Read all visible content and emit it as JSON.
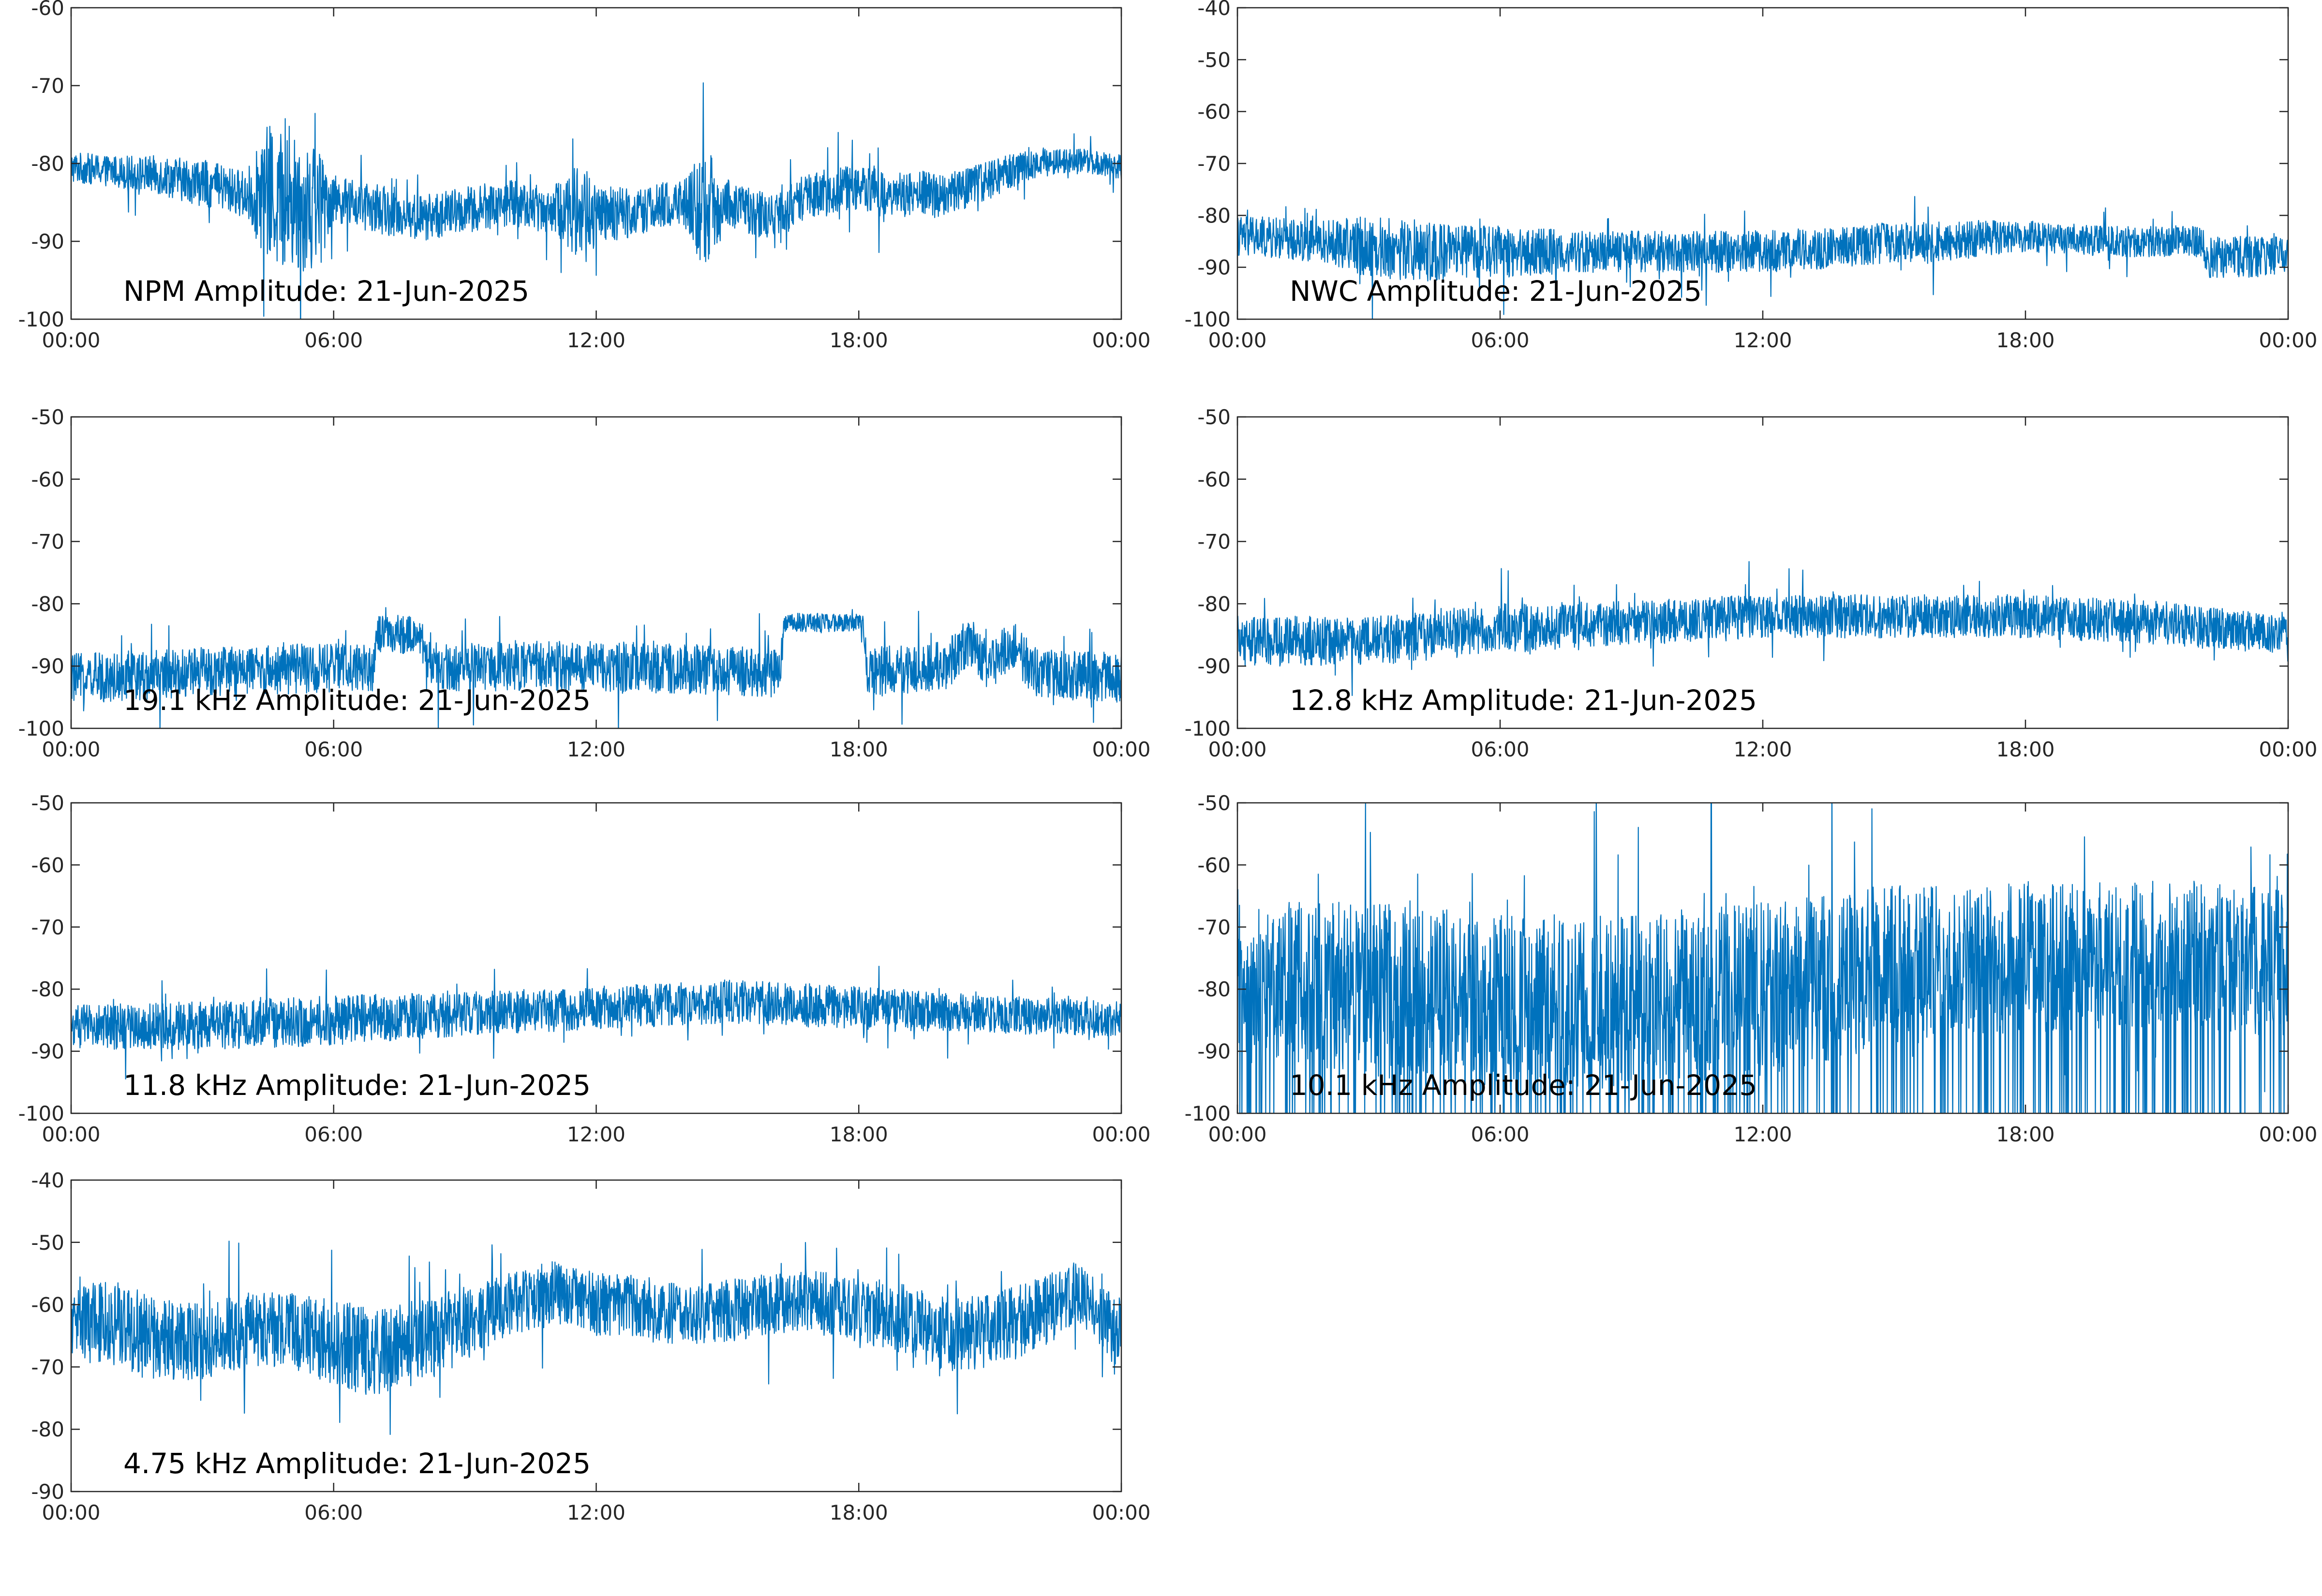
{
  "figure": {
    "line_color": "#0072BD",
    "axis_color": "#262626",
    "background": "#ffffff"
  },
  "chart_data": [
    {
      "type": "line",
      "title": "NPM Amplitude: 21-Jun-2025",
      "xticks": [
        "00:00",
        "06:00",
        "12:00",
        "18:00",
        "00:00"
      ],
      "xlim_hours": [
        0,
        24
      ],
      "ylim": [
        -100,
        -60
      ],
      "yticks": [
        -60,
        -70,
        -80,
        -90,
        -100
      ],
      "grid": false,
      "series": [
        {
          "color": "#0072BD",
          "x_hours": [
            0,
            1,
            2,
            3,
            4,
            4.5,
            5,
            5.5,
            6,
            7,
            8,
            9,
            10,
            11,
            11.7,
            12,
            13,
            14,
            14.5,
            15,
            16,
            17,
            18,
            19,
            20,
            21,
            22,
            23,
            24
          ],
          "center": [
            -80.5,
            -81,
            -81.5,
            -82.5,
            -84,
            -84,
            -85,
            -85,
            -84.5,
            -86,
            -87,
            -86,
            -85,
            -86,
            -86,
            -87,
            -86,
            -85,
            -86,
            -85,
            -87,
            -84,
            -83,
            -84,
            -84,
            -82,
            -80,
            -79.5,
            -80.5
          ],
          "band": [
            2,
            2,
            2.5,
            3,
            3,
            9,
            9,
            9,
            3,
            3,
            3,
            3,
            3,
            3,
            7,
            4,
            3,
            3,
            8,
            3,
            3,
            3,
            3,
            3,
            3,
            2.5,
            2,
            1.5,
            1.5
          ]
        }
      ]
    },
    {
      "type": "line",
      "title": "NWC Amplitude: 21-Jun-2025",
      "xticks": [
        "00:00",
        "06:00",
        "12:00",
        "18:00",
        "00:00"
      ],
      "xlim_hours": [
        0,
        24
      ],
      "ylim": [
        -100,
        -40
      ],
      "yticks": [
        -40,
        -50,
        -60,
        -70,
        -80,
        -90,
        -100
      ],
      "grid": false,
      "series": [
        {
          "color": "#0072BD",
          "x_hours": [
            0,
            2,
            3,
            4,
            5,
            6,
            8,
            10,
            12,
            14,
            15,
            16,
            18,
            20,
            22,
            22.2,
            24
          ],
          "center": [
            -84,
            -85,
            -86,
            -87,
            -87,
            -87,
            -87,
            -87,
            -87,
            -86,
            -85,
            -85,
            -84,
            -85,
            -85,
            -88,
            -88
          ],
          "band": [
            4,
            4,
            6,
            6,
            5,
            5,
            4,
            4,
            4,
            4,
            4,
            4,
            3,
            3,
            3,
            4,
            4
          ]
        }
      ]
    },
    {
      "type": "line",
      "title": "19.1 kHz Amplitude: 21-Jun-2025",
      "xticks": [
        "00:00",
        "06:00",
        "12:00",
        "18:00",
        "00:00"
      ],
      "xlim_hours": [
        0,
        24
      ],
      "ylim": [
        -100,
        -50
      ],
      "yticks": [
        -50,
        -60,
        -70,
        -80,
        -90,
        -100
      ],
      "grid": false,
      "series": [
        {
          "color": "#0072BD",
          "x_hours": [
            0,
            3,
            6.9,
            7,
            8,
            8.1,
            12,
            16.2,
            16.3,
            18.1,
            18.2,
            20,
            20.5,
            21,
            21.5,
            22,
            24
          ],
          "center": [
            -92,
            -91,
            -90,
            -85,
            -85,
            -90,
            -90,
            -91,
            -83,
            -83,
            -91,
            -90,
            -86,
            -90,
            -86,
            -91,
            -92
          ],
          "band": [
            4,
            4,
            4,
            3,
            3,
            4,
            4,
            4,
            1.5,
            1.5,
            4,
            4,
            4,
            4,
            4,
            4,
            4
          ]
        }
      ]
    },
    {
      "type": "line",
      "title": "12.8 kHz Amplitude: 21-Jun-2025",
      "xticks": [
        "00:00",
        "06:00",
        "12:00",
        "18:00",
        "00:00"
      ],
      "xlim_hours": [
        0,
        24
      ],
      "ylim": [
        -100,
        -50
      ],
      "yticks": [
        -50,
        -60,
        -70,
        -80,
        -90,
        -100
      ],
      "grid": false,
      "series": [
        {
          "color": "#0072BD",
          "x_hours": [
            0,
            3,
            6,
            9,
            12,
            15,
            18,
            21,
            24
          ],
          "center": [
            -86,
            -86,
            -84,
            -83,
            -82,
            -82,
            -82,
            -83,
            -85
          ],
          "band": [
            4,
            4,
            4,
            3.5,
            3.5,
            3.5,
            3.5,
            3.5,
            3
          ]
        }
      ]
    },
    {
      "type": "line",
      "title": "11.8 kHz Amplitude: 21-Jun-2025",
      "xticks": [
        "00:00",
        "06:00",
        "12:00",
        "18:00",
        "00:00"
      ],
      "xlim_hours": [
        0,
        24
      ],
      "ylim": [
        -100,
        -50
      ],
      "yticks": [
        -50,
        -60,
        -70,
        -80,
        -90,
        -100
      ],
      "grid": false,
      "series": [
        {
          "color": "#0072BD",
          "x_hours": [
            0,
            3,
            6,
            9,
            12,
            15,
            18,
            21,
            24
          ],
          "center": [
            -86,
            -86,
            -85,
            -84,
            -83,
            -82,
            -83,
            -84,
            -85
          ],
          "band": [
            3.5,
            4,
            4,
            3.5,
            3.5,
            3.5,
            3.5,
            3,
            3
          ]
        }
      ]
    },
    {
      "type": "line",
      "title": "10.1 kHz Amplitude: 21-Jun-2025",
      "xticks": [
        "00:00",
        "06:00",
        "12:00",
        "18:00",
        "00:00"
      ],
      "xlim_hours": [
        0,
        24
      ],
      "ylim": [
        -100,
        -50
      ],
      "yticks": [
        -50,
        -60,
        -70,
        -80,
        -90,
        -100
      ],
      "grid": false,
      "series": [
        {
          "color": "#0072BD",
          "x_hours": [
            0,
            3,
            6,
            9,
            12,
            15,
            18,
            21,
            24
          ],
          "center": [
            -78,
            -80,
            -82,
            -82,
            -80,
            -76,
            -75,
            -74,
            -76
          ],
          "band": [
            12,
            14,
            14,
            14,
            14,
            13,
            12,
            12,
            12
          ]
        }
      ]
    },
    {
      "type": "line",
      "title": "4.75 kHz Amplitude: 21-Jun-2025",
      "xticks": [
        "00:00",
        "06:00",
        "12:00",
        "18:00",
        "00:00"
      ],
      "xlim_hours": [
        0,
        24
      ],
      "ylim": [
        -90,
        -40
      ],
      "yticks": [
        -40,
        -50,
        -60,
        -70,
        -80,
        -90
      ],
      "grid": false,
      "series": [
        {
          "color": "#0072BD",
          "x_hours": [
            0,
            1,
            2,
            3,
            4,
            5,
            6,
            7,
            8,
            9,
            10,
            11,
            12,
            13,
            14,
            15,
            16,
            17,
            18,
            19,
            20,
            21,
            22,
            23,
            24
          ],
          "center": [
            -63,
            -63,
            -66,
            -66,
            -64,
            -64,
            -66,
            -68,
            -66,
            -63,
            -60,
            -58,
            -60,
            -60,
            -62,
            -61,
            -60,
            -59,
            -61,
            -62,
            -65,
            -64,
            -62,
            -58,
            -65
          ],
          "band": [
            6,
            7,
            7,
            6,
            6,
            6,
            7,
            7,
            7,
            6,
            5,
            5,
            5,
            5,
            5,
            5,
            5,
            5,
            5,
            6,
            6,
            6,
            6,
            5,
            6
          ]
        }
      ]
    }
  ]
}
